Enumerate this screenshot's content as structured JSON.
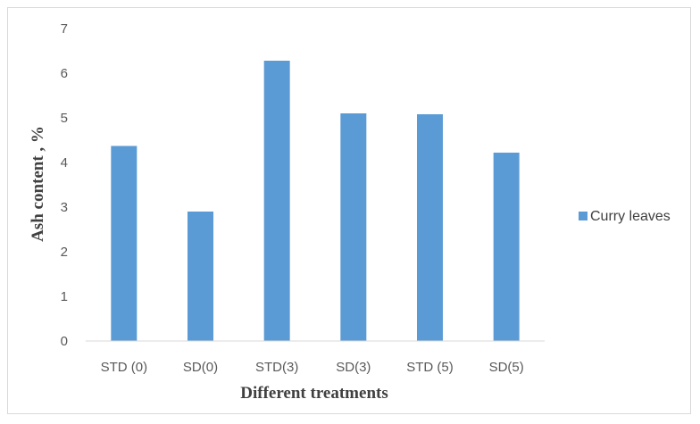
{
  "chart_data": {
    "type": "bar",
    "categories": [
      "STD (0)",
      "SD(0)",
      "STD(3)",
      "SD(3)",
      "STD (5)",
      "SD(5)"
    ],
    "series": [
      {
        "name": "Curry leaves",
        "values": [
          4.37,
          2.9,
          6.28,
          5.1,
          5.08,
          4.22
        ],
        "color": "#5b9bd5"
      }
    ],
    "xlabel": "Different treatments",
    "ylabel": "Ash content , %",
    "ylim": [
      0,
      7
    ],
    "yticks": [
      "0",
      "1",
      "2",
      "3",
      "4",
      "5",
      "6",
      "7"
    ],
    "grid": false,
    "legend_position": "right"
  }
}
